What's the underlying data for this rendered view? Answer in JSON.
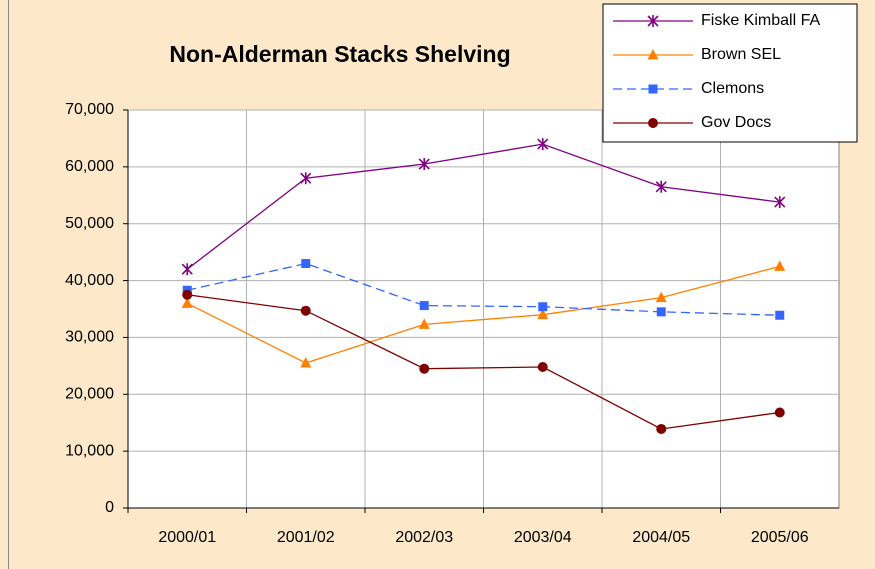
{
  "chart_data": {
    "type": "line",
    "title": "Non-Alderman Stacks Shelving",
    "categories": [
      "2000/01",
      "2001/02",
      "2002/03",
      "2003/04",
      "2004/05",
      "2005/06"
    ],
    "series": [
      {
        "name": "Fiske Kimball FA",
        "color": "#800080",
        "marker": "star",
        "dashed": false,
        "values": [
          42000,
          58000,
          60500,
          64000,
          56500,
          53800
        ]
      },
      {
        "name": "Brown SEL",
        "color": "#ff8000",
        "marker": "triangle",
        "dashed": false,
        "values": [
          36000,
          25500,
          32300,
          34000,
          37000,
          42500
        ]
      },
      {
        "name": "Clemons",
        "color": "#3366ff",
        "marker": "square",
        "dashed": true,
        "values": [
          38300,
          43000,
          35600,
          35400,
          34500,
          33900
        ]
      },
      {
        "name": "Gov Docs",
        "color": "#800000",
        "marker": "circle",
        "dashed": false,
        "values": [
          37500,
          34700,
          24500,
          24800,
          13900,
          16800
        ]
      }
    ],
    "ylim": [
      0,
      70000
    ],
    "yticks": [
      {
        "value": 0,
        "label": "0"
      },
      {
        "value": 10000,
        "label": "10,000"
      },
      {
        "value": 20000,
        "label": "20,000"
      },
      {
        "value": 30000,
        "label": "30,000"
      },
      {
        "value": 40000,
        "label": "40,000"
      },
      {
        "value": 50000,
        "label": "50,000"
      },
      {
        "value": 60000,
        "label": "60,000"
      },
      {
        "value": 70000,
        "label": "70,000"
      }
    ],
    "grid": true,
    "legend": "top-right"
  }
}
